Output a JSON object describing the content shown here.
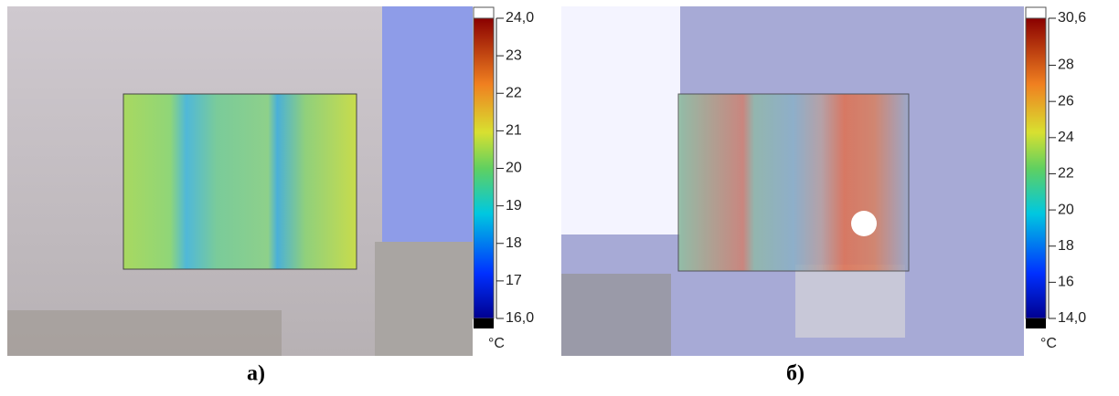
{
  "panels": [
    {
      "caption": "а)",
      "unit": "°C",
      "colorbar": {
        "range": [
          16,
          24
        ],
        "ticks": [
          {
            "value": 24,
            "label": "24,0"
          },
          23,
          22,
          21,
          20,
          19,
          18,
          17,
          {
            "value": 16,
            "label": "16,0"
          }
        ]
      }
    },
    {
      "caption": "б)",
      "unit": "°C",
      "colorbar": {
        "range": [
          14,
          30.6
        ],
        "ticks": [
          {
            "value": 30.6,
            "label": "30,6"
          },
          28,
          26,
          24,
          22,
          20,
          18,
          16,
          {
            "value": 14,
            "label": "14,0"
          }
        ]
      }
    }
  ]
}
